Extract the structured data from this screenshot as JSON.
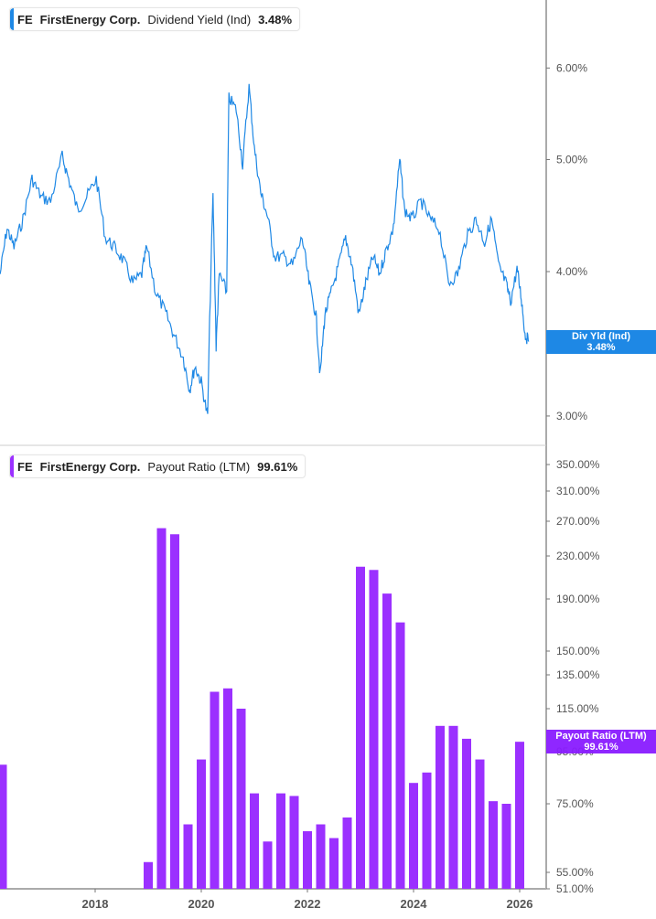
{
  "colors": {
    "yield": "#1e88e5",
    "payout": "#9b30ff",
    "payout_tag": "#8a1cff",
    "axis": "#aaaaaa"
  },
  "chart_data": [
    {
      "type": "line",
      "ticker": "FE",
      "company": "FirstEnergy Corp.",
      "metric": "Dividend Yield (Ind)",
      "current": "3.48%",
      "tag_label": "Div Yld (Ind)",
      "scale": "log",
      "ylim": [
        2.95,
        6.85
      ],
      "yticks": [
        "3.00%",
        "4.00%",
        "5.00%",
        "6.00%"
      ],
      "ytick_values": [
        3,
        4,
        5,
        6
      ],
      "points": [
        [
          2016.21,
          3.98
        ],
        [
          2016.34,
          4.36
        ],
        [
          2016.47,
          4.2
        ],
        [
          2016.64,
          4.44
        ],
        [
          2016.81,
          4.81
        ],
        [
          2016.98,
          4.64
        ],
        [
          2017.16,
          4.6
        ],
        [
          2017.38,
          5.03
        ],
        [
          2017.5,
          4.81
        ],
        [
          2017.67,
          4.52
        ],
        [
          2017.84,
          4.64
        ],
        [
          2018.02,
          4.81
        ],
        [
          2018.19,
          4.28
        ],
        [
          2018.36,
          4.2
        ],
        [
          2018.53,
          4.09
        ],
        [
          2018.71,
          3.91
        ],
        [
          2018.88,
          3.98
        ],
        [
          2018.97,
          4.2
        ],
        [
          2019.14,
          3.84
        ],
        [
          2019.31,
          3.7
        ],
        [
          2019.48,
          3.53
        ],
        [
          2019.66,
          3.37
        ],
        [
          2019.78,
          3.16
        ],
        [
          2019.88,
          3.31
        ],
        [
          2020.0,
          3.21
        ],
        [
          2020.12,
          2.99
        ],
        [
          2020.22,
          4.64
        ],
        [
          2020.28,
          3.44
        ],
        [
          2020.34,
          3.98
        ],
        [
          2020.48,
          3.84
        ],
        [
          2020.52,
          5.66
        ],
        [
          2020.66,
          5.52
        ],
        [
          2020.78,
          4.94
        ],
        [
          2020.9,
          5.78
        ],
        [
          2021.0,
          5.11
        ],
        [
          2021.12,
          4.68
        ],
        [
          2021.24,
          4.48
        ],
        [
          2021.38,
          4.12
        ],
        [
          2021.55,
          4.12
        ],
        [
          2021.72,
          4.05
        ],
        [
          2021.9,
          4.28
        ],
        [
          2022.03,
          3.91
        ],
        [
          2022.16,
          3.67
        ],
        [
          2022.24,
          3.25
        ],
        [
          2022.33,
          3.67
        ],
        [
          2022.45,
          3.84
        ],
        [
          2022.59,
          4.05
        ],
        [
          2022.72,
          4.28
        ],
        [
          2022.84,
          4.05
        ],
        [
          2022.97,
          3.67
        ],
        [
          2023.1,
          3.91
        ],
        [
          2023.24,
          4.12
        ],
        [
          2023.36,
          3.98
        ],
        [
          2023.48,
          4.17
        ],
        [
          2023.62,
          4.36
        ],
        [
          2023.74,
          4.99
        ],
        [
          2023.83,
          4.52
        ],
        [
          2023.97,
          4.44
        ],
        [
          2024.14,
          4.6
        ],
        [
          2024.31,
          4.44
        ],
        [
          2024.48,
          4.36
        ],
        [
          2024.66,
          3.91
        ],
        [
          2024.83,
          3.98
        ],
        [
          2025.0,
          4.28
        ],
        [
          2025.17,
          4.44
        ],
        [
          2025.34,
          4.24
        ],
        [
          2025.47,
          4.44
        ],
        [
          2025.6,
          4.05
        ],
        [
          2025.74,
          3.91
        ],
        [
          2025.83,
          3.77
        ],
        [
          2025.95,
          4.02
        ],
        [
          2026.03,
          3.8
        ],
        [
          2026.1,
          3.53
        ],
        [
          2026.17,
          3.48
        ]
      ]
    },
    {
      "type": "bar",
      "ticker": "FE",
      "company": "FirstEnergy Corp.",
      "metric": "Payout Ratio (LTM)",
      "current": "99.61%",
      "tag_label": "Payout Ratio (LTM)",
      "yticks": [
        "51.00%",
        "55.00%",
        "75.00%",
        "95.00%",
        "115.00%",
        "135.00%",
        "150.00%",
        "190.00%",
        "230.00%",
        "270.00%",
        "310.00%",
        "350.00%"
      ],
      "ytick_values": [
        51,
        55,
        75,
        95,
        115,
        135,
        150,
        190,
        230,
        270,
        310,
        350
      ],
      "x": [
        2016.25,
        2019.0,
        2019.25,
        2019.5,
        2019.75,
        2020.0,
        2020.25,
        2020.5,
        2020.75,
        2021.0,
        2021.25,
        2021.5,
        2021.75,
        2022.0,
        2022.25,
        2022.5,
        2022.75,
        2023.0,
        2023.25,
        2023.5,
        2023.75,
        2024.0,
        2024.25,
        2024.5,
        2024.75,
        2025.0,
        2025.25,
        2025.5,
        2025.75,
        2026.0
      ],
      "values": [
        90,
        58,
        262,
        255,
        69,
        92,
        125,
        127,
        115,
        79,
        64,
        79,
        78,
        67,
        69,
        65,
        71,
        220,
        217,
        195,
        172,
        83,
        87,
        107,
        107,
        101,
        92,
        76,
        75,
        99.61
      ]
    }
  ],
  "xaxis": {
    "ticks": [
      "2018",
      "2020",
      "2022",
      "2024",
      "2026"
    ],
    "tick_values": [
      2018,
      2020,
      2022,
      2024,
      2026
    ]
  }
}
